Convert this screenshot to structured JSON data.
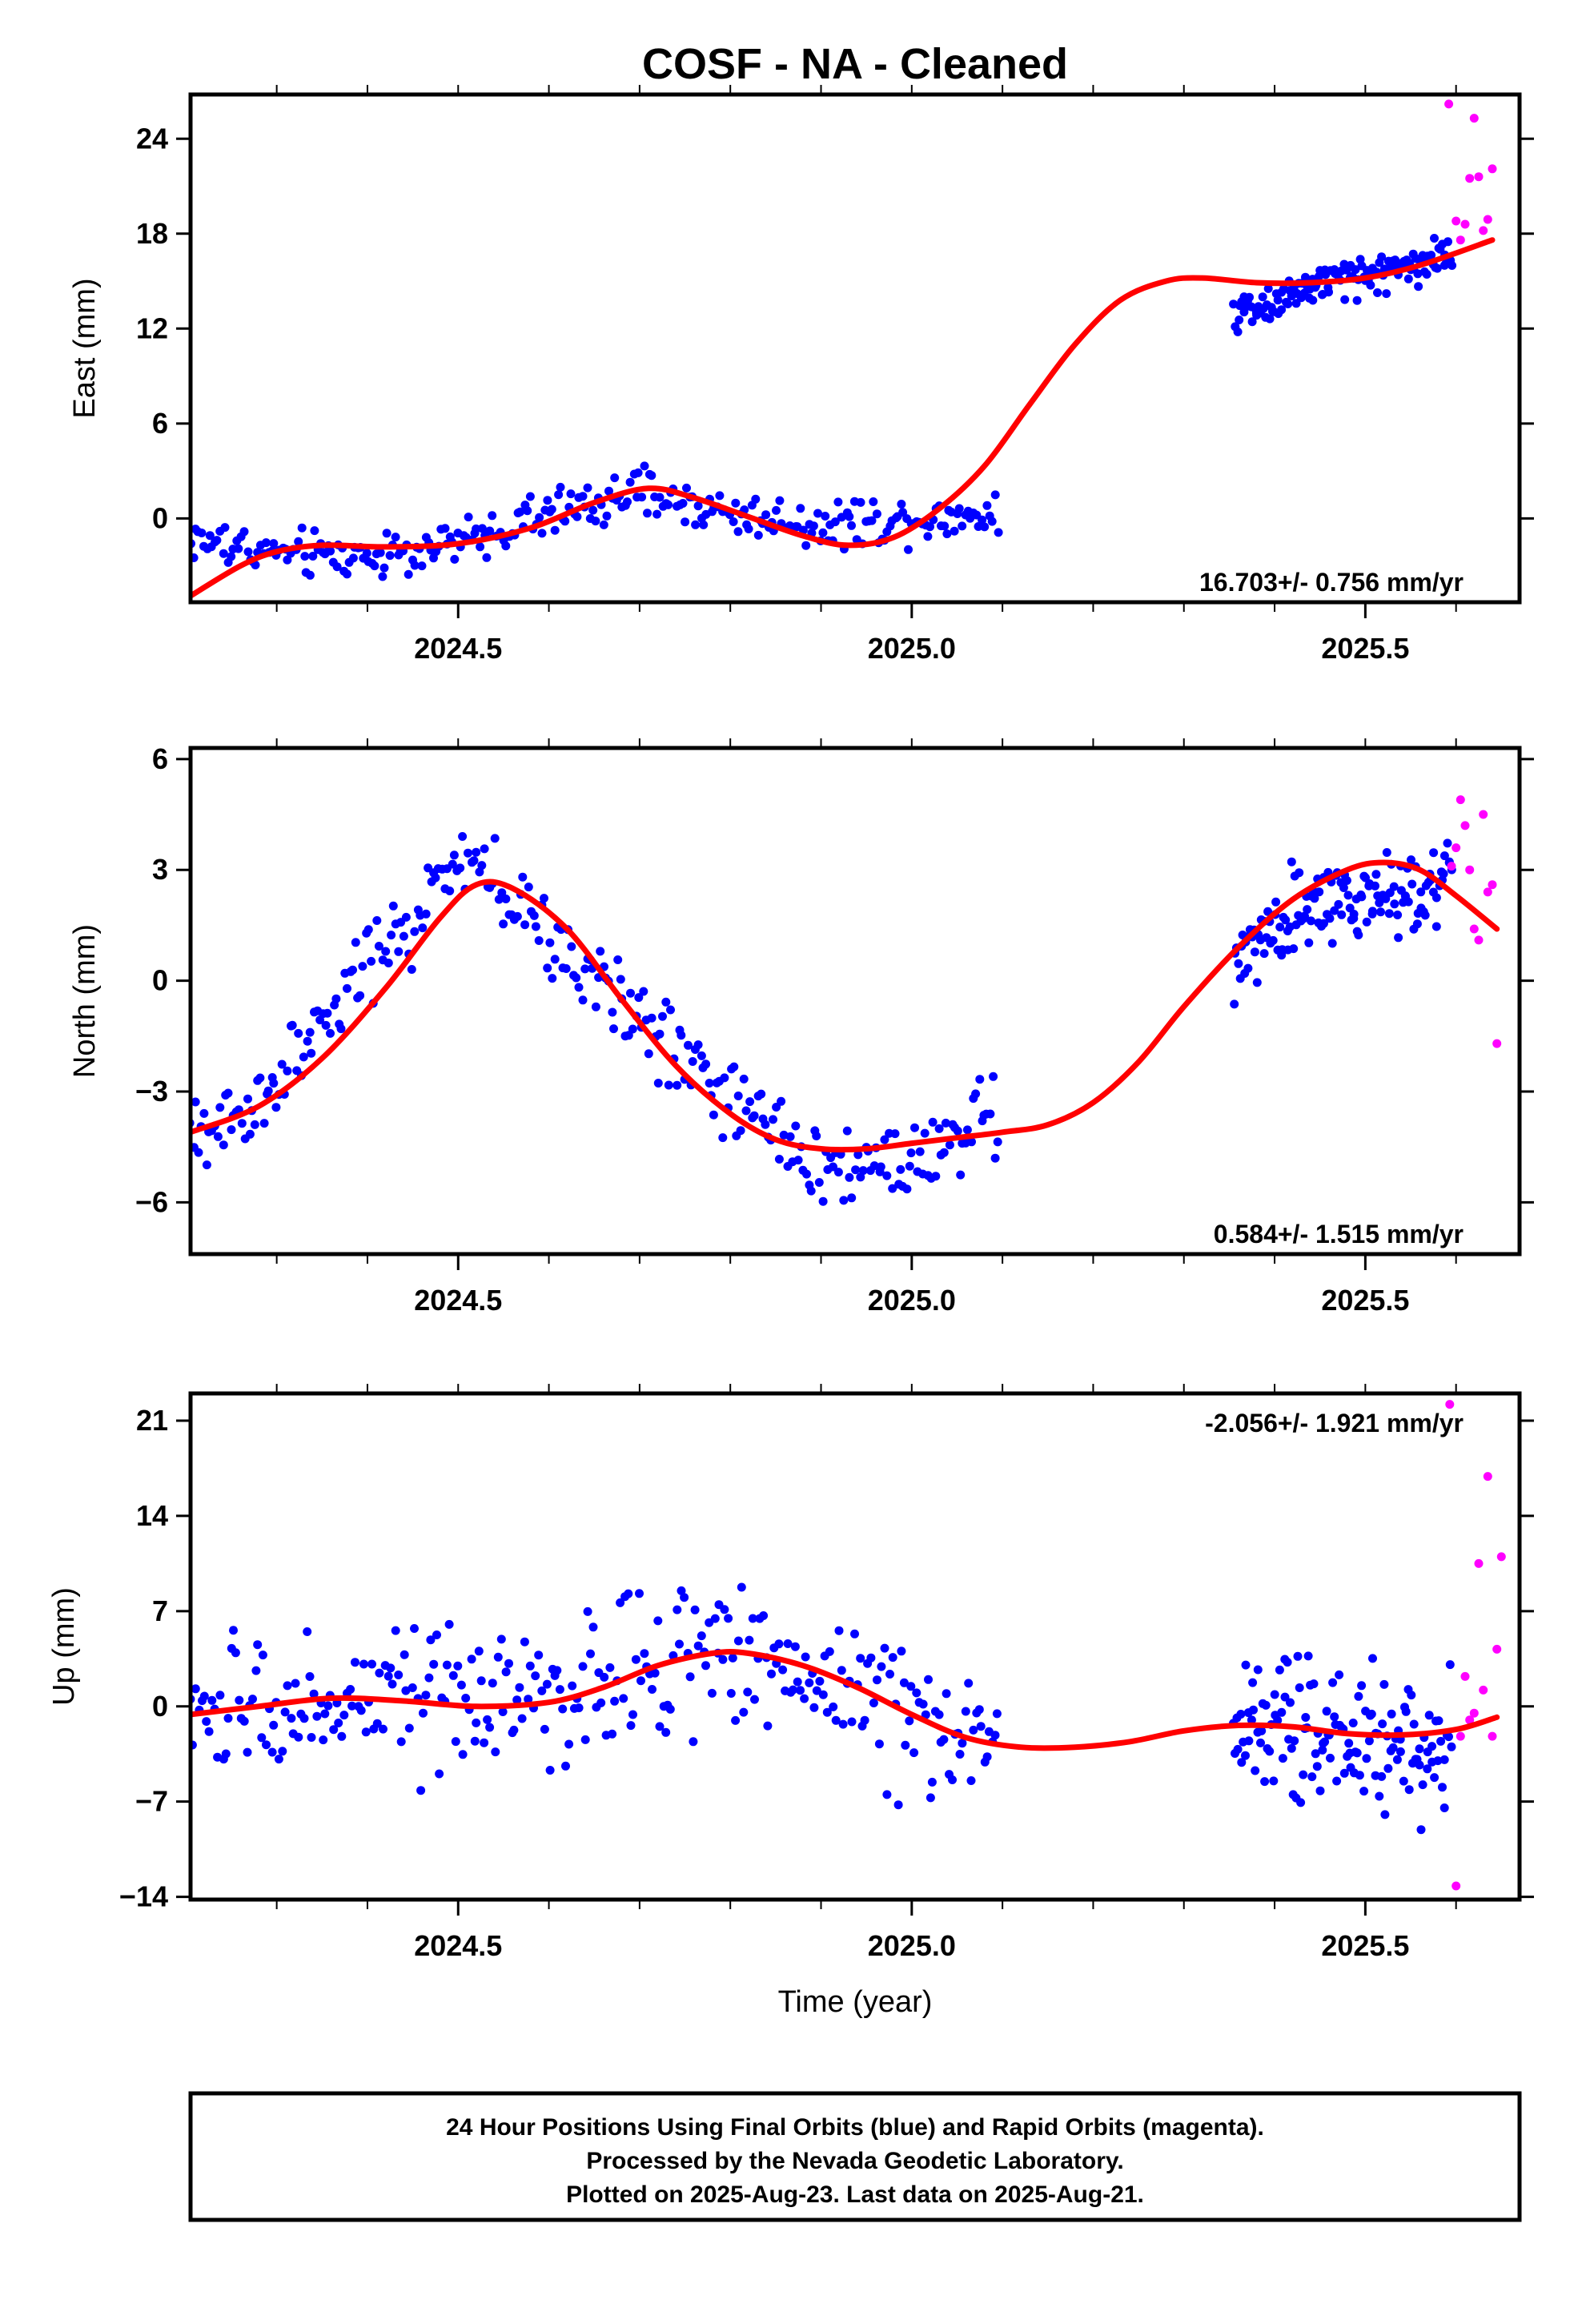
{
  "figure": {
    "title": "COSF  - NA - Cleaned",
    "xlabel": "Time (year)",
    "footer_lines": [
      "24 Hour Positions Using Final Orbits (blue) and Rapid Orbits (magenta).",
      "Processed by the Nevada Geodetic Laboratory.",
      "Plotted on 2025-Aug-23. Last data on 2025-Aug-21."
    ],
    "colors": {
      "final": "#0000ff",
      "rapid": "#ff00ff",
      "model": "#ff0000",
      "frame": "#000000"
    }
  },
  "chart_data": [
    {
      "type": "scatter",
      "name": "east",
      "ylabel": "East (mm)",
      "rate_text": "16.703+/- 0.756 mm/yr",
      "xlim": [
        2024.205,
        2025.67
      ],
      "ylim": [
        -5.3,
        26.8
      ],
      "xticks": [
        2024.5,
        2025.0,
        2025.5
      ],
      "xtick_labels": [
        "2024.5",
        "2025.0",
        "2025.5"
      ],
      "yticks": [
        0,
        6,
        12,
        18,
        24
      ],
      "ytick_labels": [
        "0",
        "6",
        "12",
        "18",
        "24"
      ],
      "final_segments": [
        {
          "x0": 2024.205,
          "x1": 2025.095,
          "n": 300,
          "amp": 1.05,
          "curve": [
            [
              2024.205,
              -1.3
            ],
            [
              2024.3,
              -2.2
            ],
            [
              2024.4,
              -2.4
            ],
            [
              2024.5,
              -1.6
            ],
            [
              2024.6,
              0.3
            ],
            [
              2024.7,
              1.6
            ],
            [
              2024.8,
              0.3
            ],
            [
              2024.9,
              -0.4
            ],
            [
              2025.0,
              0.0
            ],
            [
              2025.095,
              0.3
            ]
          ]
        },
        {
          "x0": 2025.355,
          "x1": 2025.595,
          "n": 140,
          "amp": 0.9,
          "curve": [
            [
              2025.355,
              13.0
            ],
            [
              2025.45,
              14.8
            ],
            [
              2025.52,
              15.6
            ],
            [
              2025.595,
              16.8
            ]
          ]
        }
      ],
      "rapid": [
        [
          2025.592,
          26.2
        ],
        [
          2025.6,
          18.8
        ],
        [
          2025.605,
          17.6
        ],
        [
          2025.61,
          18.6
        ],
        [
          2025.615,
          21.5
        ],
        [
          2025.62,
          25.3
        ],
        [
          2025.625,
          21.6
        ],
        [
          2025.63,
          18.2
        ],
        [
          2025.635,
          18.9
        ],
        [
          2025.64,
          22.1
        ]
      ],
      "model": [
        [
          2024.205,
          -4.9
        ],
        [
          2024.26,
          -3.0
        ],
        [
          2024.3,
          -2.1
        ],
        [
          2024.35,
          -1.7
        ],
        [
          2024.42,
          -1.8
        ],
        [
          2024.5,
          -1.6
        ],
        [
          2024.58,
          -0.6
        ],
        [
          2024.65,
          1.0
        ],
        [
          2024.71,
          1.9
        ],
        [
          2024.76,
          1.3
        ],
        [
          2024.82,
          0.1
        ],
        [
          2024.88,
          -1.1
        ],
        [
          2024.93,
          -1.7
        ],
        [
          2024.98,
          -1.2
        ],
        [
          2025.03,
          0.6
        ],
        [
          2025.08,
          3.3
        ],
        [
          2025.13,
          7.2
        ],
        [
          2025.18,
          11.0
        ],
        [
          2025.23,
          13.8
        ],
        [
          2025.28,
          15.0
        ],
        [
          2025.32,
          15.2
        ],
        [
          2025.38,
          14.9
        ],
        [
          2025.44,
          14.9
        ],
        [
          2025.5,
          15.2
        ],
        [
          2025.56,
          16.0
        ],
        [
          2025.64,
          17.6
        ]
      ]
    },
    {
      "type": "scatter",
      "name": "north",
      "ylabel": "North (mm)",
      "rate_text": "0.584+/- 1.515 mm/yr",
      "xlim": [
        2024.205,
        2025.67
      ],
      "ylim": [
        -7.4,
        6.3
      ],
      "xticks": [
        2024.5,
        2025.0,
        2025.5
      ],
      "xtick_labels": [
        "2024.5",
        "2025.0",
        "2025.5"
      ],
      "yticks": [
        -6,
        -3,
        0,
        3,
        6
      ],
      "ytick_labels": [
        "−6",
        "−3",
        "0",
        "3",
        "6"
      ],
      "final_segments": [
        {
          "x0": 2024.205,
          "x1": 2025.095,
          "n": 300,
          "amp": 0.85,
          "curve": [
            [
              2024.205,
              -4.5
            ],
            [
              2024.3,
              -2.8
            ],
            [
              2024.4,
              0.3
            ],
            [
              2024.5,
              3.0
            ],
            [
              2024.55,
              2.5
            ],
            [
              2024.6,
              1.0
            ],
            [
              2024.7,
              -1.0
            ],
            [
              2024.8,
              -3.2
            ],
            [
              2024.85,
              -4.2
            ],
            [
              2024.9,
              -5.0
            ],
            [
              2025.0,
              -4.8
            ],
            [
              2025.095,
              -3.5
            ]
          ]
        },
        {
          "x0": 2025.355,
          "x1": 2025.595,
          "n": 140,
          "amp": 0.8,
          "curve": [
            [
              2025.355,
              0.2
            ],
            [
              2025.42,
              1.8
            ],
            [
              2025.5,
              2.2
            ],
            [
              2025.595,
              2.8
            ]
          ]
        }
      ],
      "rapid": [
        [
          2025.595,
          3.1
        ],
        [
          2025.6,
          3.6
        ],
        [
          2025.605,
          4.9
        ],
        [
          2025.61,
          4.2
        ],
        [
          2025.615,
          3.0
        ],
        [
          2025.62,
          1.4
        ],
        [
          2025.625,
          1.1
        ],
        [
          2025.63,
          4.5
        ],
        [
          2025.635,
          2.4
        ],
        [
          2025.64,
          2.6
        ],
        [
          2025.645,
          -1.7
        ]
      ],
      "model": [
        [
          2024.205,
          -4.1
        ],
        [
          2024.28,
          -3.4
        ],
        [
          2024.35,
          -2.1
        ],
        [
          2024.42,
          -0.2
        ],
        [
          2024.48,
          1.7
        ],
        [
          2024.52,
          2.6
        ],
        [
          2024.56,
          2.5
        ],
        [
          2024.62,
          1.4
        ],
        [
          2024.68,
          -0.5
        ],
        [
          2024.74,
          -2.3
        ],
        [
          2024.8,
          -3.6
        ],
        [
          2024.85,
          -4.3
        ],
        [
          2024.9,
          -4.55
        ],
        [
          2024.95,
          -4.55
        ],
        [
          2025.0,
          -4.4
        ],
        [
          2025.05,
          -4.25
        ],
        [
          2025.1,
          -4.1
        ],
        [
          2025.15,
          -3.9
        ],
        [
          2025.2,
          -3.3
        ],
        [
          2025.25,
          -2.2
        ],
        [
          2025.3,
          -0.7
        ],
        [
          2025.36,
          0.9
        ],
        [
          2025.42,
          2.2
        ],
        [
          2025.48,
          3.0
        ],
        [
          2025.52,
          3.2
        ],
        [
          2025.56,
          3.0
        ],
        [
          2025.6,
          2.3
        ],
        [
          2025.645,
          1.4
        ]
      ]
    },
    {
      "type": "scatter",
      "name": "up",
      "ylabel": "Up (mm)",
      "rate_text": "-2.056+/- 1.921 mm/yr",
      "xlim": [
        2024.205,
        2025.67
      ],
      "ylim": [
        -14.2,
        23.0
      ],
      "xticks": [
        2024.5,
        2025.0,
        2025.5
      ],
      "xtick_labels": [
        "2024.5",
        "2025.0",
        "2025.5"
      ],
      "yticks": [
        -14,
        -7,
        0,
        7,
        14,
        21
      ],
      "ytick_labels": [
        "−14",
        "−7",
        "0",
        "7",
        "14",
        "21"
      ],
      "final_segments": [
        {
          "x0": 2024.205,
          "x1": 2025.095,
          "n": 300,
          "amp": 3.8,
          "curve": [
            [
              2024.205,
              -1.0
            ],
            [
              2024.35,
              0.5
            ],
            [
              2024.5,
              0.0
            ],
            [
              2024.6,
              0.5
            ],
            [
              2024.72,
              3.5
            ],
            [
              2024.82,
              4.0
            ],
            [
              2024.9,
              2.5
            ],
            [
              2025.0,
              -1.0
            ],
            [
              2025.095,
              -2.5
            ]
          ]
        },
        {
          "x0": 2025.355,
          "x1": 2025.595,
          "n": 140,
          "amp": 3.8,
          "curve": [
            [
              2025.355,
              -1.5
            ],
            [
              2025.45,
              -1.5
            ],
            [
              2025.55,
              -2.5
            ],
            [
              2025.595,
              -3.0
            ]
          ]
        }
      ],
      "rapid": [
        [
          2025.593,
          22.2
        ],
        [
          2025.6,
          -13.2
        ],
        [
          2025.605,
          -2.2
        ],
        [
          2025.61,
          2.2
        ],
        [
          2025.615,
          -1.0
        ],
        [
          2025.62,
          -0.5
        ],
        [
          2025.625,
          10.5
        ],
        [
          2025.63,
          1.2
        ],
        [
          2025.635,
          16.9
        ],
        [
          2025.64,
          -2.2
        ],
        [
          2025.645,
          4.2
        ],
        [
          2025.65,
          11.0
        ]
      ],
      "model": [
        [
          2024.205,
          -0.6
        ],
        [
          2024.28,
          0.0
        ],
        [
          2024.36,
          0.6
        ],
        [
          2024.44,
          0.4
        ],
        [
          2024.52,
          0.0
        ],
        [
          2024.6,
          0.3
        ],
        [
          2024.66,
          1.4
        ],
        [
          2024.72,
          3.0
        ],
        [
          2024.78,
          3.9
        ],
        [
          2024.82,
          3.9
        ],
        [
          2024.88,
          3.0
        ],
        [
          2024.94,
          1.4
        ],
        [
          2025.0,
          -0.6
        ],
        [
          2025.06,
          -2.3
        ],
        [
          2025.12,
          -3.0
        ],
        [
          2025.18,
          -3.0
        ],
        [
          2025.24,
          -2.6
        ],
        [
          2025.3,
          -1.8
        ],
        [
          2025.36,
          -1.4
        ],
        [
          2025.42,
          -1.5
        ],
        [
          2025.48,
          -2.0
        ],
        [
          2025.54,
          -2.1
        ],
        [
          2025.6,
          -1.7
        ],
        [
          2025.645,
          -0.8
        ]
      ]
    }
  ]
}
